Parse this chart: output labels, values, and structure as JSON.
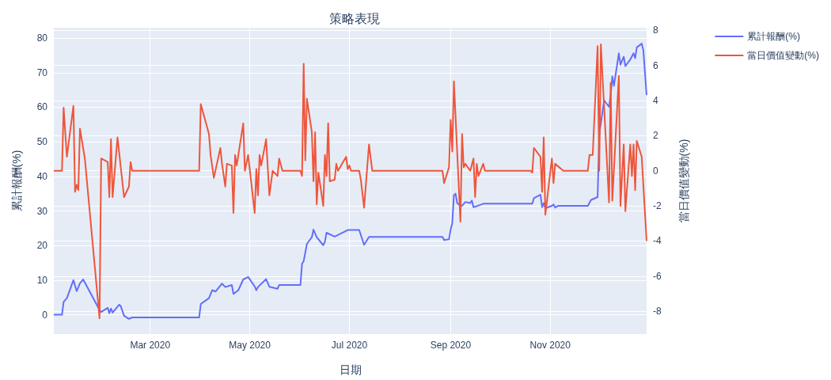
{
  "chart_data": {
    "type": "line",
    "title": "策略表現",
    "xlabel": "日期",
    "ylabel": "累計報酬(%)",
    "y2label": "當日價值變動(%)",
    "xlim": [
      "2020-01-02",
      "2020-12-30"
    ],
    "xticks": [
      {
        "value": "2020-03-01",
        "label": "Mar 2020"
      },
      {
        "value": "2020-05-01",
        "label": "May 2020"
      },
      {
        "value": "2020-07-01",
        "label": "Jul 2020"
      },
      {
        "value": "2020-09-01",
        "label": "Sep 2020"
      },
      {
        "value": "2020-11-01",
        "label": "Nov 2020"
      }
    ],
    "ylim": [
      -5.6,
      83
    ],
    "yticks": [
      0,
      10,
      20,
      30,
      40,
      50,
      60,
      70,
      80
    ],
    "y2lim": [
      -9.3,
      8.15
    ],
    "y2ticks": [
      -8,
      -6,
      -4,
      -2,
      0,
      2,
      4,
      6,
      8
    ],
    "grid": true,
    "legend": "top right",
    "line_style": "solid",
    "series": [
      {
        "name": "累計報酬(%)",
        "color": "#636efa",
        "x": [
          "2020-01-02",
          "2020-01-07",
          "2020-01-08",
          "2020-01-10",
          "2020-01-14",
          "2020-01-16",
          "2020-01-18",
          "2020-01-20",
          "2020-01-30",
          "2020-01-31",
          "2020-02-04",
          "2020-02-05",
          "2020-02-06",
          "2020-02-07",
          "2020-02-11",
          "2020-02-12",
          "2020-02-14",
          "2020-02-17",
          "2020-02-19",
          "2020-03-31",
          "2020-04-01",
          "2020-04-06",
          "2020-04-08",
          "2020-04-10",
          "2020-04-14",
          "2020-04-16",
          "2020-04-20",
          "2020-04-21",
          "2020-04-24",
          "2020-04-27",
          "2020-04-30",
          "2020-05-04",
          "2020-05-05",
          "2020-05-06",
          "2020-05-11",
          "2020-05-13",
          "2020-05-18",
          "2020-05-19",
          "2020-06-01",
          "2020-06-02",
          "2020-06-03",
          "2020-06-05",
          "2020-06-08",
          "2020-06-09",
          "2020-06-11",
          "2020-06-15",
          "2020-06-16",
          "2020-06-17",
          "2020-06-22",
          "2020-06-30",
          "2020-07-07",
          "2020-07-10",
          "2020-07-13",
          "2020-08-27",
          "2020-08-28",
          "2020-08-31",
          "2020-09-01",
          "2020-09-02",
          "2020-09-03",
          "2020-09-04",
          "2020-09-05",
          "2020-09-07",
          "2020-09-08",
          "2020-09-10",
          "2020-09-13",
          "2020-09-14",
          "2020-09-15",
          "2020-09-17",
          "2020-09-21",
          "2020-10-21",
          "2020-10-22",
          "2020-10-26",
          "2020-10-27",
          "2020-10-28",
          "2020-10-29",
          "2020-11-02",
          "2020-11-03",
          "2020-11-04",
          "2020-11-06",
          "2020-11-24",
          "2020-11-26",
          "2020-11-30",
          "2020-12-01",
          "2020-12-04",
          "2020-12-07",
          "2020-12-08",
          "2020-12-09",
          "2020-12-10",
          "2020-12-13",
          "2020-12-14",
          "2020-12-16",
          "2020-12-17",
          "2020-12-20",
          "2020-12-22",
          "2020-12-23",
          "2020-12-24",
          "2020-12-27",
          "2020-12-28",
          "2020-12-30"
        ],
        "values": [
          0,
          0,
          3.7,
          4.8,
          10,
          6.8,
          9.1,
          10.2,
          1.4,
          0.8,
          2,
          0.4,
          1.8,
          0.6,
          2.9,
          2.5,
          -0.3,
          -1.2,
          -0.8,
          -0.8,
          3.1,
          4.8,
          7.1,
          6.7,
          9,
          8,
          8.6,
          6,
          7.1,
          10.2,
          10.9,
          8.2,
          7.1,
          8,
          10.3,
          8.1,
          7.5,
          8.6,
          8.6,
          14.7,
          15.5,
          20.5,
          22.4,
          24.6,
          22.4,
          20.1,
          21.1,
          23.7,
          22.6,
          24.5,
          24.5,
          20.2,
          22.5,
          22.5,
          21.6,
          21.8,
          24.6,
          26.5,
          34.6,
          35,
          32.3,
          31.5,
          31.5,
          32.6,
          32.3,
          33,
          31.1,
          31.4,
          32.1,
          32.1,
          33.7,
          34.7,
          31.1,
          32.3,
          30.8,
          31.5,
          31.9,
          31,
          31.5,
          31.5,
          33.2,
          34,
          52.1,
          62,
          60.1,
          63.5,
          68.9,
          66.2,
          75.6,
          72.3,
          74.6,
          71.9,
          73.8,
          75.6,
          74.2,
          77.3,
          78.4,
          76.5,
          63.5
        ]
      },
      {
        "name": "當日價值變動(%)",
        "color": "#ef553b",
        "axis": "y2",
        "x": [
          "2020-01-02",
          "2020-01-07",
          "2020-01-08",
          "2020-01-10",
          "2020-01-14",
          "2020-01-15",
          "2020-01-16",
          "2020-01-17",
          "2020-01-18",
          "2020-01-21",
          "2020-01-30",
          "2020-01-31",
          "2020-02-04",
          "2020-02-05",
          "2020-02-06",
          "2020-02-07",
          "2020-02-10",
          "2020-02-14",
          "2020-02-17",
          "2020-02-18",
          "2020-02-19",
          "2020-03-31",
          "2020-04-01",
          "2020-04-06",
          "2020-04-07",
          "2020-04-09",
          "2020-04-13",
          "2020-04-14",
          "2020-04-16",
          "2020-04-17",
          "2020-04-20",
          "2020-04-21",
          "2020-04-22",
          "2020-04-23",
          "2020-04-27",
          "2020-04-28",
          "2020-04-30",
          "2020-05-04",
          "2020-05-05",
          "2020-05-06",
          "2020-05-07",
          "2020-05-08",
          "2020-05-11",
          "2020-05-13",
          "2020-05-15",
          "2020-05-18",
          "2020-05-19",
          "2020-05-21",
          "2020-06-01",
          "2020-06-02",
          "2020-06-03",
          "2020-06-04",
          "2020-06-05",
          "2020-06-08",
          "2020-06-09",
          "2020-06-10",
          "2020-06-11",
          "2020-06-12",
          "2020-06-15",
          "2020-06-16",
          "2020-06-17",
          "2020-06-18",
          "2020-06-19",
          "2020-06-22",
          "2020-06-23",
          "2020-06-24",
          "2020-06-29",
          "2020-06-30",
          "2020-07-01",
          "2020-07-02",
          "2020-07-07",
          "2020-07-08",
          "2020-07-10",
          "2020-07-13",
          "2020-07-15",
          "2020-08-27",
          "2020-08-28",
          "2020-08-31",
          "2020-09-01",
          "2020-09-02",
          "2020-09-03",
          "2020-09-07",
          "2020-09-08",
          "2020-09-09",
          "2020-09-10",
          "2020-09-13",
          "2020-09-15",
          "2020-09-16",
          "2020-09-17",
          "2020-09-18",
          "2020-09-21",
          "2020-09-22",
          "2020-10-20",
          "2020-10-21",
          "2020-10-22",
          "2020-10-26",
          "2020-10-27",
          "2020-10-28",
          "2020-10-29",
          "2020-11-02",
          "2020-11-03",
          "2020-11-04",
          "2020-11-09",
          "2020-11-24",
          "2020-11-25",
          "2020-11-27",
          "2020-11-30",
          "2020-12-01",
          "2020-12-02",
          "2020-12-07",
          "2020-12-08",
          "2020-12-09",
          "2020-12-13",
          "2020-12-14",
          "2020-12-16",
          "2020-12-17",
          "2020-12-20",
          "2020-12-21",
          "2020-12-22",
          "2020-12-23",
          "2020-12-24",
          "2020-12-27",
          "2020-12-30"
        ],
        "values": [
          0,
          0,
          3.6,
          0.8,
          3.7,
          -1.2,
          -0.8,
          -1.1,
          2.4,
          0.7,
          -8.4,
          0.7,
          0.5,
          -1.5,
          1.8,
          -1.5,
          1.9,
          -1.5,
          -0.9,
          0.5,
          0,
          0,
          3.8,
          2.1,
          0.9,
          -0.4,
          1.3,
          0.4,
          -0.9,
          0.4,
          0.3,
          -2.4,
          0.9,
          0.3,
          2.7,
          0,
          0.9,
          -2.4,
          0.1,
          -1.4,
          0.9,
          0.3,
          1.8,
          -1.4,
          0,
          -0.3,
          0.7,
          0,
          0,
          -0.3,
          6.1,
          0.6,
          4.1,
          2.2,
          -0.6,
          2.2,
          -1.9,
          -0.1,
          -2,
          0.9,
          -0.3,
          2.7,
          -0.6,
          -0.5,
          0.4,
          0,
          0.8,
          0.1,
          0.3,
          0,
          0,
          -0.5,
          -2.1,
          1.5,
          0,
          0,
          -0.7,
          0.2,
          2.9,
          1.1,
          5.1,
          -2.9,
          2.1,
          0.2,
          0.4,
          0,
          0.7,
          -1.5,
          0.4,
          -0.3,
          0.4,
          0,
          0,
          -0.1,
          1.3,
          0.8,
          -1.2,
          1.9,
          -2.5,
          0.7,
          -0.7,
          0.4,
          0,
          0,
          0.9,
          0.9,
          7.1,
          0,
          7.2,
          -1.8,
          5,
          -1.7,
          5.4,
          -2,
          1.5,
          -2.3,
          1.5,
          -0.3,
          1.5,
          -1.1,
          1.7,
          0.8,
          -4
        ]
      }
    ]
  }
}
